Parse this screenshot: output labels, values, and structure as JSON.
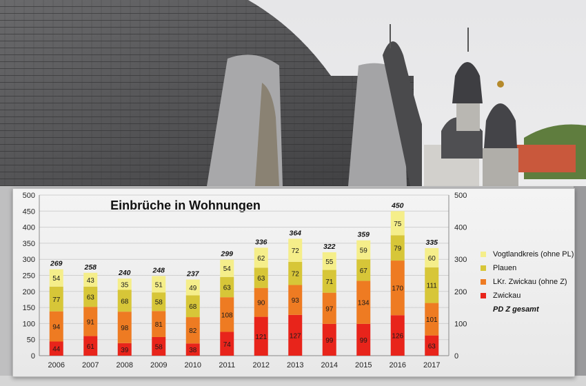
{
  "chart_data": {
    "type": "bar",
    "stacked": true,
    "title": "Einbrüche in Wohnungen",
    "categories": [
      "2006",
      "2007",
      "2008",
      "2009",
      "2010",
      "2011",
      "2012",
      "2013",
      "2014",
      "2015",
      "2016",
      "2017"
    ],
    "series": [
      {
        "name": "Zwickau",
        "color": "#e8241b",
        "values": [
          44,
          61,
          39,
          58,
          38,
          74,
          121,
          127,
          99,
          99,
          126,
          63
        ]
      },
      {
        "name": "LKr. Zwickau (ohne Z)",
        "color": "#ee7b22",
        "values": [
          94,
          91,
          98,
          81,
          82,
          108,
          90,
          93,
          97,
          134,
          170,
          101
        ]
      },
      {
        "name": "Plauen",
        "color": "#d7c638",
        "values": [
          77,
          63,
          68,
          58,
          68,
          63,
          63,
          72,
          71,
          67,
          79,
          111
        ]
      },
      {
        "name": "Vogtlandkreis (ohne PL)",
        "color": "#f5ee8a",
        "values": [
          54,
          43,
          35,
          51,
          49,
          54,
          62,
          72,
          55,
          59,
          75,
          60
        ]
      }
    ],
    "totals": {
      "name": "PD Z gesamt",
      "values": [
        269,
        258,
        240,
        248,
        237,
        299,
        336,
        364,
        322,
        359,
        450,
        335
      ]
    },
    "ylim": [
      0,
      500
    ],
    "yticks": [
      0,
      50,
      100,
      150,
      200,
      250,
      300,
      350,
      400,
      450,
      500
    ],
    "yticks_right": [
      0,
      100,
      200,
      300,
      400,
      500
    ],
    "grid": true,
    "legend_position": "right"
  }
}
